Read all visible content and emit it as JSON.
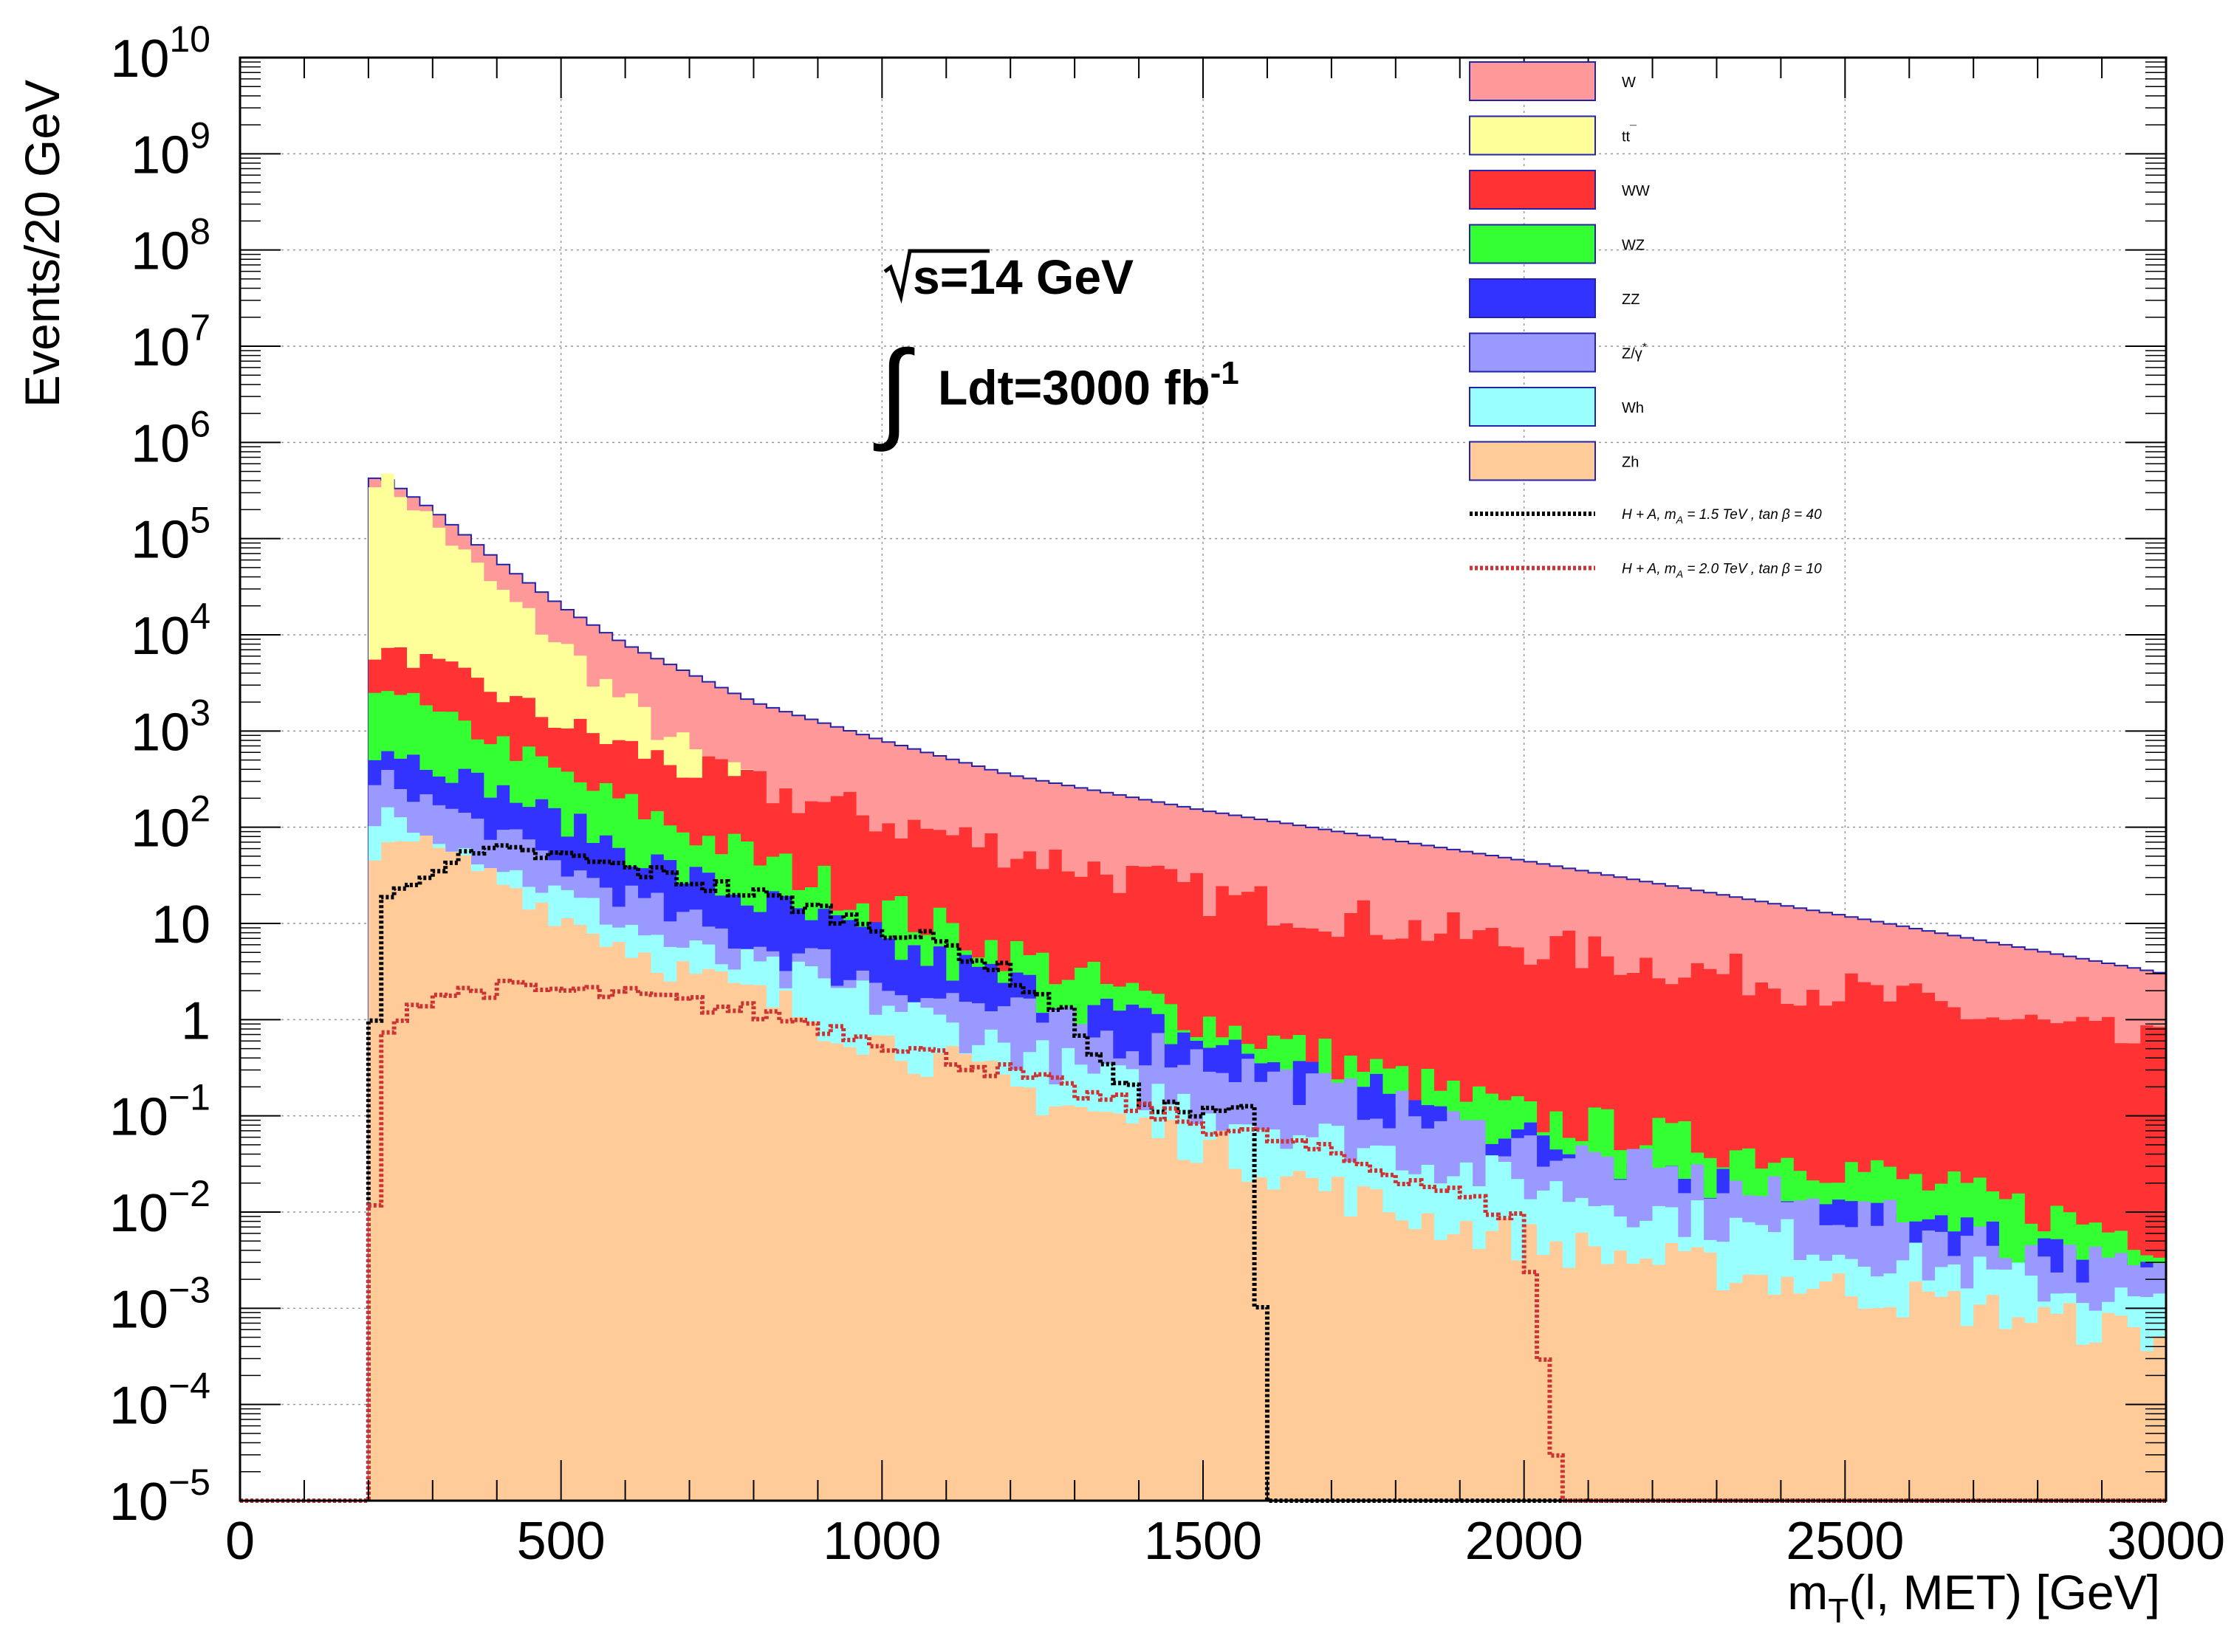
{
  "chart_data": {
    "type": "histogram",
    "stacked": true,
    "ylabel": "Events/20 GeV",
    "xlabel_main": "m",
    "xlabel_sub": "T",
    "xlabel_rest": "(l, MET) [GeV]",
    "xlim": [
      0,
      3000
    ],
    "bin_width": 20,
    "yscale": "log",
    "ylim_exponents": [
      -5,
      10
    ],
    "grid": true,
    "x_ticks": [
      0,
      500,
      1000,
      1500,
      2000,
      2500,
      3000
    ],
    "y_ticks": [
      {
        "value": -5,
        "base": "10",
        "sup": "−5"
      },
      {
        "value": -4,
        "base": "10",
        "sup": "−4"
      },
      {
        "value": -3,
        "base": "10",
        "sup": "−3"
      },
      {
        "value": -2,
        "base": "10",
        "sup": "−2"
      },
      {
        "value": -1,
        "base": "10",
        "sup": "−1"
      },
      {
        "value": 0,
        "base": "1",
        "sup": ""
      },
      {
        "value": 1,
        "base": "10",
        "sup": ""
      },
      {
        "value": 2,
        "base": "10",
        "sup": "2"
      },
      {
        "value": 3,
        "base": "10",
        "sup": "3"
      },
      {
        "value": 4,
        "base": "10",
        "sup": "4"
      },
      {
        "value": 5,
        "base": "10",
        "sup": "5"
      },
      {
        "value": 6,
        "base": "10",
        "sup": "6"
      },
      {
        "value": 7,
        "base": "10",
        "sup": "7"
      },
      {
        "value": 8,
        "base": "10",
        "sup": "8"
      },
      {
        "value": 9,
        "base": "10",
        "sup": "9"
      },
      {
        "value": 10,
        "base": "10",
        "sup": "10"
      }
    ],
    "annotation": {
      "line1": "s=14 GeV",
      "integral": "∫",
      "line2": "Ldt=3000 fb",
      "line2_sup": "-1"
    },
    "curve_start_mT": 200,
    "floor_value": 1e-05,
    "legend_position": "top-right",
    "stack_order": [
      "W",
      "ttbar",
      "WW",
      "WZ",
      "ZZ",
      "Z/gamma*",
      "Wh",
      "Zh"
    ],
    "series": [
      {
        "key": "W",
        "label": "W",
        "label_sup": "",
        "kind": "fill",
        "color": "#ff9999",
        "profile": [
          [
            200,
            400000
          ],
          [
            220,
            450000
          ],
          [
            300,
            200000
          ],
          [
            400,
            60000
          ],
          [
            500,
            20000
          ],
          [
            600,
            8000
          ],
          [
            800,
            2000
          ],
          [
            1000,
            800
          ],
          [
            1200,
            350
          ],
          [
            1500,
            150
          ],
          [
            2000,
            45
          ],
          [
            2500,
            12
          ],
          [
            3000,
            3
          ]
        ]
      },
      {
        "key": "ttbar",
        "label": "tt",
        "label_sup": "¯",
        "kind": "fill",
        "color": "#ffff99",
        "profile": [
          [
            200,
            400000
          ],
          [
            220,
            450000
          ],
          [
            300,
            150000
          ],
          [
            400,
            30000
          ],
          [
            500,
            8000
          ],
          [
            600,
            2000
          ],
          [
            700,
            600
          ],
          [
            800,
            250
          ],
          [
            900,
            100
          ],
          [
            1000,
            40
          ],
          [
            1100,
            15
          ],
          [
            1200,
            5
          ],
          [
            1300,
            2
          ],
          [
            1500,
            0.5
          ],
          [
            1700,
            0.1
          ],
          [
            2000,
            0.01
          ],
          [
            3000,
            0.001
          ]
        ]
      },
      {
        "key": "WW",
        "label": "WW",
        "label_sup": "",
        "kind": "fill",
        "color": "#ff3333",
        "profile": [
          [
            200,
            6000
          ],
          [
            220,
            7000
          ],
          [
            300,
            5000
          ],
          [
            400,
            2500
          ],
          [
            500,
            1200
          ],
          [
            700,
            400
          ],
          [
            1000,
            120
          ],
          [
            1200,
            60
          ],
          [
            1500,
            20
          ],
          [
            2000,
            6
          ],
          [
            2500,
            2
          ],
          [
            3000,
            0.5
          ]
        ]
      },
      {
        "key": "WZ",
        "label": "WZ",
        "label_sup": "",
        "kind": "fill",
        "color": "#33ff33",
        "profile": [
          [
            200,
            2000
          ],
          [
            220,
            3500
          ],
          [
            300,
            1500
          ],
          [
            400,
            800
          ],
          [
            500,
            350
          ],
          [
            700,
            90
          ],
          [
            1000,
            15
          ],
          [
            1200,
            5
          ],
          [
            1500,
            1
          ],
          [
            2000,
            0.1
          ],
          [
            2500,
            0.03
          ],
          [
            3000,
            0.005
          ]
        ]
      },
      {
        "key": "ZZ",
        "label": "ZZ",
        "label_sup": "",
        "kind": "fill",
        "color": "#3333ff",
        "profile": [
          [
            200,
            400
          ],
          [
            220,
            700
          ],
          [
            300,
            450
          ],
          [
            400,
            250
          ],
          [
            500,
            120
          ],
          [
            700,
            30
          ],
          [
            1000,
            6
          ],
          [
            1300,
            1.5
          ],
          [
            1500,
            0.6
          ],
          [
            2000,
            0.06
          ],
          [
            2500,
            0.01
          ],
          [
            3000,
            0.002
          ]
        ]
      },
      {
        "key": "Zgamma",
        "label": "Z/γ",
        "label_sup": "*",
        "kind": "fill",
        "color": "#9999ff",
        "profile": [
          [
            200,
            200
          ],
          [
            220,
            350
          ],
          [
            300,
            180
          ],
          [
            400,
            90
          ],
          [
            500,
            40
          ],
          [
            700,
            10
          ],
          [
            1000,
            2.5
          ],
          [
            1300,
            0.8
          ],
          [
            1500,
            0.4
          ],
          [
            2000,
            0.05
          ],
          [
            2500,
            0.01
          ],
          [
            3000,
            0.002
          ]
        ]
      },
      {
        "key": "Wh",
        "label": "Wh",
        "label_sup": "",
        "kind": "fill",
        "color": "#99ffff",
        "profile": [
          [
            200,
            80
          ],
          [
            220,
            160
          ],
          [
            300,
            90
          ],
          [
            400,
            40
          ],
          [
            500,
            20
          ],
          [
            700,
            5
          ],
          [
            1000,
            1.5
          ],
          [
            1300,
            0.3
          ],
          [
            1500,
            0.12
          ],
          [
            2000,
            0.02
          ],
          [
            2500,
            0.004
          ],
          [
            3000,
            0.001
          ]
        ]
      },
      {
        "key": "Zh",
        "label": "Zh",
        "label_sup": "",
        "kind": "fill",
        "color": "#ffcc99",
        "profile": [
          [
            200,
            25
          ],
          [
            220,
            60
          ],
          [
            250,
            90
          ],
          [
            300,
            60
          ],
          [
            400,
            30
          ],
          [
            500,
            12
          ],
          [
            700,
            3
          ],
          [
            1000,
            0.6
          ],
          [
            1200,
            0.2
          ],
          [
            1500,
            0.05
          ],
          [
            1800,
            0.01
          ],
          [
            2000,
            0.005
          ],
          [
            3000,
            0.0005
          ]
        ]
      },
      {
        "key": "sig1",
        "label": "H + A,   m",
        "label_sub": "A",
        "label_tail": " = 1.5   TeV   ,   tan β = 40",
        "kind": "line",
        "color": "#000000",
        "profile": [
          [
            200,
            1e-05
          ],
          [
            210,
            1.0
          ],
          [
            220,
            15
          ],
          [
            300,
            40
          ],
          [
            400,
            55
          ],
          [
            500,
            50
          ],
          [
            600,
            38
          ],
          [
            700,
            28
          ],
          [
            800,
            20
          ],
          [
            900,
            14
          ],
          [
            1000,
            9
          ],
          [
            1100,
            6
          ],
          [
            1200,
            3
          ],
          [
            1300,
            1
          ],
          [
            1350,
            0.3
          ],
          [
            1400,
            0.15
          ],
          [
            1500,
            0.1
          ],
          [
            1580,
            0.12
          ],
          [
            1600,
            1e-05
          ],
          [
            3000,
            1e-05
          ]
        ]
      },
      {
        "key": "sig2",
        "label": "H + A,   m",
        "label_sub": "A",
        "label_tail": " = 2.0   TeV   ,   tan β = 10",
        "kind": "line",
        "color": "#cc3333",
        "profile": [
          [
            200,
            1e-05
          ],
          [
            210,
            0.01
          ],
          [
            220,
            0.5
          ],
          [
            250,
            1.2
          ],
          [
            300,
            1.8
          ],
          [
            400,
            2.1
          ],
          [
            500,
            2.0
          ],
          [
            600,
            1.8
          ],
          [
            700,
            1.5
          ],
          [
            800,
            1.2
          ],
          [
            900,
            0.9
          ],
          [
            1000,
            0.6
          ],
          [
            1100,
            0.4
          ],
          [
            1200,
            0.28
          ],
          [
            1300,
            0.18
          ],
          [
            1400,
            0.12
          ],
          [
            1500,
            0.08
          ],
          [
            1600,
            0.06
          ],
          [
            1700,
            0.04
          ],
          [
            1800,
            0.025
          ],
          [
            1900,
            0.015
          ],
          [
            2000,
            0.008
          ],
          [
            2060,
            1e-05
          ],
          [
            3000,
            1e-05
          ]
        ]
      }
    ]
  }
}
